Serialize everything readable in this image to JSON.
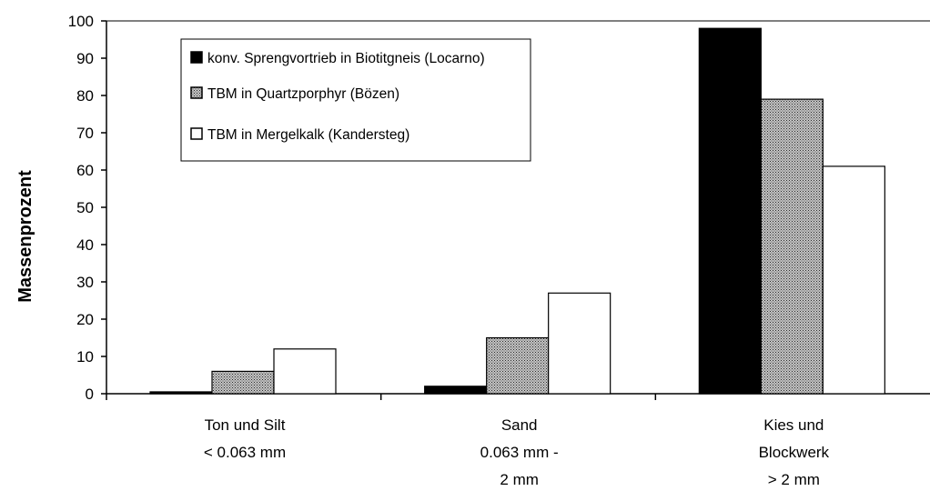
{
  "chart_data": {
    "type": "bar",
    "ylabel": "Massenprozent",
    "xlabel": "",
    "ylim": [
      0,
      100
    ],
    "yticks": [
      0,
      10,
      20,
      30,
      40,
      50,
      60,
      70,
      80,
      90,
      100
    ],
    "categories": [
      [
        "Ton und Silt",
        "< 0.063 mm"
      ],
      [
        "Sand",
        "0.063 mm -",
        "2 mm"
      ],
      [
        "Kies und",
        "Blockwerk",
        "> 2   mm"
      ]
    ],
    "series": [
      {
        "name": "konv. Sprengvortrieb in Biotitgneis (Locarno)",
        "values": [
          0.5,
          2,
          98
        ],
        "color": "#000000",
        "fill": "solid"
      },
      {
        "name": "TBM in Quartzporphyr (Bözen)",
        "values": [
          6,
          15,
          79
        ],
        "color": "#8c8c8c",
        "fill": "stipple"
      },
      {
        "name": "TBM in Mergelkalk (Kandersteg)",
        "values": [
          12,
          27,
          61
        ],
        "color": "#ffffff",
        "fill": "empty"
      }
    ],
    "legend_position": "top-left",
    "grid": false
  }
}
